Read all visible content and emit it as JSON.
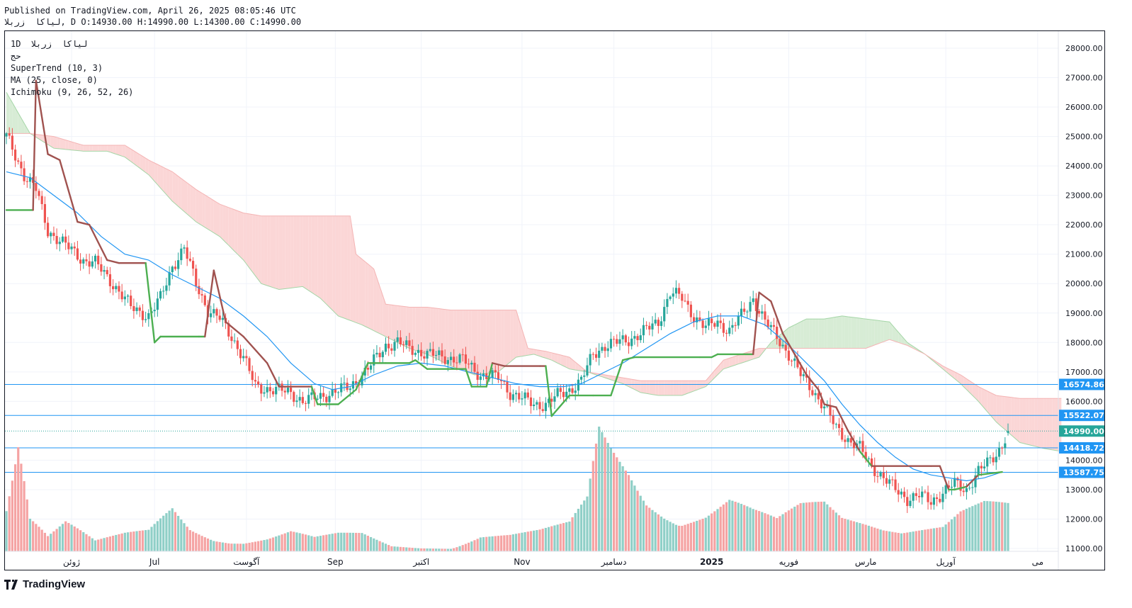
{
  "header": {
    "published": "Published on TradingView.com, April 26, 2025 08:05:46 UTC",
    "ohlc_line": "لیاکا  زربلا, D O:14930.00 H:14990.00 L:14300.00 C:14990.00"
  },
  "legend": {
    "symbol": "1D  لیاکا  زربلا",
    "volume": "حج",
    "supertrend": "SuperTrend (10, 3)",
    "ma": "MA (25, close, 0)",
    "ichimoku": "Ichimoku (9, 26, 52, 26)"
  },
  "brand": {
    "name": "TradingView"
  },
  "colors": {
    "up": "#26a69a",
    "down": "#ef5350",
    "vol_up": "#8fcfc7",
    "vol_down": "#f5a3a3",
    "ma": "#2196f3",
    "st_up": "#4caf50",
    "st_down": "#a0524f",
    "cloud_bear": "#fbd6d6",
    "cloud_bull": "#d7ecd5",
    "level": "#2196f3"
  },
  "chart_data": {
    "type": "candlestick",
    "ylim": [
      11000,
      28000
    ],
    "ytick_labels": [
      "28000.00",
      "27000.00",
      "26000.00",
      "25000.00",
      "24000.00",
      "23000.00",
      "22000.00",
      "21000.00",
      "20000.00",
      "19000.00",
      "18000.00",
      "17000.00",
      "16000.00",
      "14000.00",
      "13000.00",
      "12000.00",
      "11000.00"
    ],
    "yticks": [
      28000,
      27000,
      26000,
      25000,
      24000,
      23000,
      22000,
      21000,
      20000,
      19000,
      18000,
      17000,
      16000,
      14000,
      13000,
      12000,
      11000
    ],
    "x_tick_labels": [
      "ژوئن",
      "Jul",
      "آگوست",
      "Sep",
      "اکتبر",
      "Nov",
      "دسامبر",
      "2025",
      "فوریه",
      "مارس",
      "آوریل",
      "می"
    ],
    "x_tick_bold": [
      false,
      false,
      false,
      false,
      false,
      false,
      false,
      true,
      false,
      false,
      false,
      false
    ],
    "x_tick_index": [
      22,
      50,
      81,
      111,
      140,
      174,
      205,
      238,
      264,
      290,
      317,
      348
    ],
    "x_range": [
      0,
      355
    ],
    "last_bar": {
      "open": 14930,
      "high": 14990,
      "low": 14300,
      "close": 14990
    },
    "price_levels": [
      {
        "value": 16574.86,
        "label": "16574.86",
        "kind": "level"
      },
      {
        "value": 15522.07,
        "label": "15522.07",
        "kind": "level"
      },
      {
        "value": 14990.0,
        "label": "14990.00",
        "kind": "current"
      },
      {
        "value": 14418.72,
        "label": "14418.72",
        "kind": "level"
      },
      {
        "value": 13587.75,
        "label": "13587.75",
        "kind": "level"
      }
    ],
    "price_knots": [
      [
        0,
        25000
      ],
      [
        6,
        23700
      ],
      [
        10,
        23200
      ],
      [
        14,
        21800
      ],
      [
        20,
        21300
      ],
      [
        26,
        20800
      ],
      [
        30,
        20700
      ],
      [
        36,
        20000
      ],
      [
        42,
        19200
      ],
      [
        48,
        18900
      ],
      [
        52,
        19500
      ],
      [
        56,
        20600
      ],
      [
        60,
        21200
      ],
      [
        64,
        20000
      ],
      [
        68,
        19100
      ],
      [
        72,
        18800
      ],
      [
        76,
        18200
      ],
      [
        80,
        17500
      ],
      [
        84,
        16500
      ],
      [
        90,
        16400
      ],
      [
        96,
        16300
      ],
      [
        100,
        16000
      ],
      [
        104,
        16100
      ],
      [
        110,
        16300
      ],
      [
        116,
        16500
      ],
      [
        122,
        17100
      ],
      [
        128,
        17900
      ],
      [
        132,
        18000
      ],
      [
        136,
        17800
      ],
      [
        142,
        17600
      ],
      [
        148,
        17500
      ],
      [
        154,
        17400
      ],
      [
        160,
        16900
      ],
      [
        166,
        16800
      ],
      [
        170,
        16300
      ],
      [
        174,
        16100
      ],
      [
        178,
        15900
      ],
      [
        182,
        15900
      ],
      [
        186,
        16200
      ],
      [
        190,
        16400
      ],
      [
        194,
        16700
      ],
      [
        198,
        17600
      ],
      [
        202,
        17900
      ],
      [
        206,
        18000
      ],
      [
        210,
        18100
      ],
      [
        214,
        18300
      ],
      [
        220,
        18700
      ],
      [
        224,
        19700
      ],
      [
        228,
        19500
      ],
      [
        232,
        18900
      ],
      [
        236,
        18500
      ],
      [
        240,
        18700
      ],
      [
        244,
        18400
      ],
      [
        248,
        18900
      ],
      [
        252,
        19500
      ],
      [
        256,
        18700
      ],
      [
        260,
        18200
      ],
      [
        264,
        17600
      ],
      [
        268,
        16900
      ],
      [
        272,
        16400
      ],
      [
        276,
        15800
      ],
      [
        280,
        15100
      ],
      [
        284,
        14700
      ],
      [
        288,
        14400
      ],
      [
        292,
        13800
      ],
      [
        296,
        13400
      ],
      [
        300,
        13000
      ],
      [
        304,
        12700
      ],
      [
        308,
        12800
      ],
      [
        312,
        12600
      ],
      [
        316,
        12900
      ],
      [
        320,
        13200
      ],
      [
        324,
        13000
      ],
      [
        328,
        13600
      ],
      [
        332,
        14000
      ],
      [
        336,
        14500
      ],
      [
        338,
        14990
      ]
    ],
    "volume_knots": [
      [
        0,
        1.8
      ],
      [
        4,
        4.2
      ],
      [
        8,
        1.2
      ],
      [
        14,
        0.5
      ],
      [
        20,
        0.9
      ],
      [
        30,
        0.3
      ],
      [
        40,
        0.5
      ],
      [
        48,
        0.6
      ],
      [
        56,
        1.3
      ],
      [
        62,
        0.7
      ],
      [
        70,
        0.4
      ],
      [
        80,
        0.3
      ],
      [
        88,
        0.4
      ],
      [
        96,
        0.6
      ],
      [
        104,
        0.4
      ],
      [
        112,
        0.5
      ],
      [
        120,
        0.5
      ],
      [
        130,
        0.15
      ],
      [
        140,
        0.1
      ],
      [
        150,
        0.1
      ],
      [
        160,
        0.5
      ],
      [
        170,
        0.5
      ],
      [
        180,
        0.6
      ],
      [
        190,
        0.8
      ],
      [
        196,
        1.5
      ],
      [
        200,
        3.5
      ],
      [
        204,
        3.0
      ],
      [
        210,
        2.4
      ],
      [
        216,
        1.6
      ],
      [
        222,
        1.3
      ],
      [
        228,
        1.1
      ],
      [
        236,
        1.2
      ],
      [
        244,
        1.6
      ],
      [
        252,
        1.2
      ],
      [
        260,
        0.9
      ],
      [
        268,
        1.3
      ],
      [
        276,
        1.4
      ],
      [
        282,
        1.0
      ],
      [
        290,
        0.9
      ],
      [
        296,
        0.8
      ],
      [
        300,
        0.8
      ],
      [
        308,
        0.8
      ],
      [
        316,
        0.8
      ],
      [
        322,
        1.2
      ],
      [
        330,
        1.4
      ],
      [
        338,
        1.3
      ]
    ],
    "supertrend": [
      [
        0,
        22500
      ],
      [
        9,
        22500
      ],
      [
        10,
        26900
      ],
      [
        14,
        24400
      ],
      [
        18,
        24200
      ],
      [
        24,
        22100
      ],
      [
        28,
        22000
      ],
      [
        34,
        20800
      ],
      [
        38,
        20700
      ],
      [
        47,
        20700
      ],
      [
        47,
        20700
      ],
      [
        50,
        18000
      ],
      [
        52,
        18200
      ],
      [
        65,
        18200
      ],
      [
        67,
        18200
      ],
      [
        70,
        20450
      ],
      [
        74,
        18700
      ],
      [
        80,
        18200
      ],
      [
        88,
        17300
      ],
      [
        92,
        16500
      ],
      [
        102,
        16500
      ],
      [
        103,
        16500
      ],
      [
        105,
        15900
      ],
      [
        112,
        15900
      ],
      [
        118,
        16400
      ],
      [
        122,
        17300
      ],
      [
        128,
        17300
      ],
      [
        136,
        17300
      ],
      [
        138,
        17400
      ],
      [
        142,
        17100
      ],
      [
        154,
        17100
      ],
      [
        155,
        17100
      ],
      [
        157,
        16500
      ],
      [
        162,
        16500
      ],
      [
        164,
        17300
      ],
      [
        168,
        17200
      ],
      [
        180,
        17200
      ],
      [
        182,
        17200
      ],
      [
        184,
        15500
      ],
      [
        190,
        16200
      ],
      [
        198,
        16200
      ],
      [
        204,
        16200
      ],
      [
        208,
        17400
      ],
      [
        212,
        17500
      ],
      [
        234,
        17500
      ],
      [
        238,
        17500
      ],
      [
        240,
        17600
      ],
      [
        250,
        17600
      ],
      [
        252,
        17600
      ],
      [
        254,
        19700
      ],
      [
        258,
        19400
      ],
      [
        262,
        18300
      ],
      [
        266,
        17600
      ],
      [
        270,
        16900
      ],
      [
        274,
        16400
      ],
      [
        276,
        15900
      ],
      [
        280,
        15800
      ],
      [
        284,
        15000
      ],
      [
        288,
        14300
      ],
      [
        292,
        13800
      ],
      [
        312,
        13800
      ],
      [
        315,
        13800
      ],
      [
        318,
        13000
      ],
      [
        320,
        13000
      ],
      [
        324,
        13100
      ],
      [
        328,
        13500
      ],
      [
        336,
        13600
      ]
    ],
    "ma": [
      [
        0,
        23800
      ],
      [
        8,
        23600
      ],
      [
        16,
        23000
      ],
      [
        24,
        22400
      ],
      [
        32,
        21600
      ],
      [
        40,
        21000
      ],
      [
        48,
        20800
      ],
      [
        56,
        20300
      ],
      [
        64,
        19900
      ],
      [
        72,
        19500
      ],
      [
        80,
        18900
      ],
      [
        88,
        18200
      ],
      [
        96,
        17300
      ],
      [
        104,
        16600
      ],
      [
        110,
        16400
      ],
      [
        116,
        16500
      ],
      [
        124,
        16900
      ],
      [
        132,
        17200
      ],
      [
        140,
        17300
      ],
      [
        148,
        17200
      ],
      [
        156,
        17000
      ],
      [
        164,
        16800
      ],
      [
        172,
        16600
      ],
      [
        180,
        16500
      ],
      [
        188,
        16500
      ],
      [
        194,
        16600
      ],
      [
        200,
        16900
      ],
      [
        208,
        17300
      ],
      [
        216,
        17800
      ],
      [
        224,
        18300
      ],
      [
        232,
        18700
      ],
      [
        240,
        18900
      ],
      [
        248,
        18900
      ],
      [
        256,
        18600
      ],
      [
        264,
        17900
      ],
      [
        270,
        17300
      ],
      [
        276,
        16700
      ],
      [
        282,
        15900
      ],
      [
        288,
        15200
      ],
      [
        294,
        14600
      ],
      [
        300,
        14100
      ],
      [
        306,
        13700
      ],
      [
        312,
        13500
      ],
      [
        318,
        13400
      ],
      [
        324,
        13300
      ],
      [
        330,
        13400
      ],
      [
        336,
        13600
      ]
    ],
    "cloud_a": [
      [
        0,
        26500
      ],
      [
        8,
        25100
      ],
      [
        16,
        24600
      ],
      [
        26,
        24500
      ],
      [
        34,
        24500
      ],
      [
        40,
        24300
      ],
      [
        48,
        23700
      ],
      [
        56,
        22800
      ],
      [
        64,
        22100
      ],
      [
        72,
        21600
      ],
      [
        80,
        20800
      ],
      [
        86,
        20000
      ],
      [
        92,
        19800
      ],
      [
        100,
        19900
      ],
      [
        106,
        19500
      ],
      [
        112,
        18900
      ],
      [
        120,
        18600
      ],
      [
        128,
        18200
      ],
      [
        136,
        17800
      ],
      [
        142,
        17600
      ],
      [
        150,
        17200
      ],
      [
        158,
        16900
      ],
      [
        166,
        17000
      ],
      [
        172,
        17500
      ],
      [
        178,
        17600
      ],
      [
        184,
        17400
      ],
      [
        190,
        17100
      ],
      [
        196,
        17000
      ],
      [
        202,
        16800
      ],
      [
        208,
        16600
      ],
      [
        214,
        16300
      ],
      [
        220,
        16200
      ],
      [
        228,
        16200
      ],
      [
        236,
        16500
      ],
      [
        242,
        17100
      ],
      [
        248,
        17300
      ],
      [
        254,
        17500
      ],
      [
        258,
        18000
      ],
      [
        264,
        18500
      ],
      [
        270,
        18800
      ],
      [
        276,
        18800
      ],
      [
        282,
        18900
      ],
      [
        290,
        18800
      ],
      [
        298,
        18700
      ],
      [
        304,
        18000
      ],
      [
        310,
        17600
      ],
      [
        316,
        17100
      ],
      [
        322,
        16600
      ],
      [
        328,
        16000
      ],
      [
        334,
        15300
      ],
      [
        342,
        14600
      ],
      [
        350,
        14400
      ],
      [
        356,
        14300
      ]
    ],
    "cloud_b": [
      [
        0,
        25100
      ],
      [
        8,
        25100
      ],
      [
        16,
        25000
      ],
      [
        26,
        24700
      ],
      [
        34,
        24700
      ],
      [
        40,
        24700
      ],
      [
        48,
        24200
      ],
      [
        56,
        23800
      ],
      [
        64,
        23200
      ],
      [
        72,
        22700
      ],
      [
        80,
        22400
      ],
      [
        86,
        22300
      ],
      [
        92,
        22300
      ],
      [
        100,
        22300
      ],
      [
        106,
        22300
      ],
      [
        112,
        22300
      ],
      [
        116,
        22300
      ],
      [
        118,
        21000
      ],
      [
        124,
        20500
      ],
      [
        128,
        19300
      ],
      [
        136,
        19200
      ],
      [
        142,
        19200
      ],
      [
        150,
        19100
      ],
      [
        158,
        19100
      ],
      [
        166,
        19100
      ],
      [
        172,
        19100
      ],
      [
        176,
        17800
      ],
      [
        182,
        17700
      ],
      [
        190,
        17500
      ],
      [
        196,
        17000
      ],
      [
        202,
        16900
      ],
      [
        208,
        16800
      ],
      [
        214,
        16700
      ],
      [
        220,
        16700
      ],
      [
        228,
        16700
      ],
      [
        236,
        16700
      ],
      [
        242,
        17400
      ],
      [
        248,
        17600
      ],
      [
        254,
        17800
      ],
      [
        258,
        17800
      ],
      [
        264,
        17800
      ],
      [
        270,
        17800
      ],
      [
        276,
        17800
      ],
      [
        282,
        17800
      ],
      [
        290,
        17800
      ],
      [
        298,
        18100
      ],
      [
        304,
        17900
      ],
      [
        310,
        17600
      ],
      [
        316,
        17200
      ],
      [
        322,
        16900
      ],
      [
        328,
        16500
      ],
      [
        334,
        16200
      ],
      [
        342,
        16100
      ],
      [
        350,
        16100
      ],
      [
        356,
        16100
      ]
    ]
  }
}
